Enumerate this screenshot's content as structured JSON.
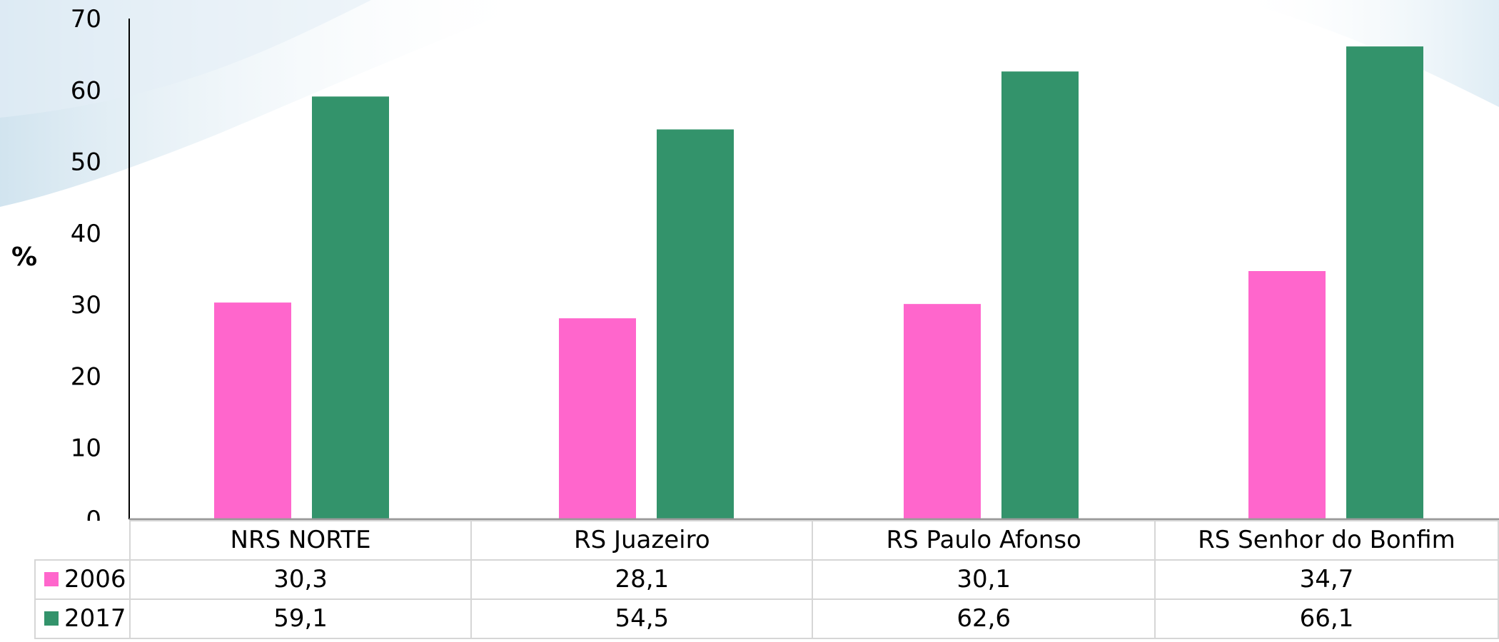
{
  "chart_data": {
    "type": "bar",
    "ylabel": "%",
    "ylim": [
      0,
      70
    ],
    "yticks": [
      0,
      10,
      20,
      30,
      40,
      50,
      60,
      70
    ],
    "categories": [
      "NRS  NORTE",
      "RS Juazeiro",
      "RS Paulo Afonso",
      "RS Senhor do Bonfim"
    ],
    "series": [
      {
        "name": "2006",
        "color": "#ff66cc",
        "values": [
          30.3,
          28.1,
          30.1,
          34.7
        ],
        "labels": [
          "30,3",
          "28,1",
          "30,1",
          "34,7"
        ]
      },
      {
        "name": "2017",
        "color": "#33936b",
        "values": [
          59.1,
          54.5,
          62.6,
          66.1
        ],
        "labels": [
          "59,1",
          "54,5",
          "62,6",
          "66,1"
        ]
      }
    ],
    "legend": "data-table",
    "grid": false
  }
}
